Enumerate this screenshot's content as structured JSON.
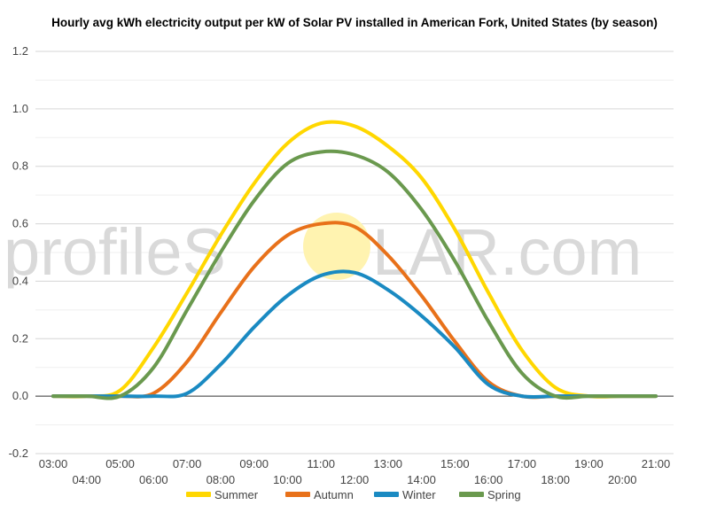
{
  "chart_data": {
    "type": "line",
    "title": "Hourly avg kWh electricity output per kW of Solar PV installed in American Fork, United States (by season)",
    "xlabel": "",
    "ylabel": "",
    "ylim": [
      -0.2,
      1.2
    ],
    "yticks": [
      "-0.2",
      "0.0",
      "0.2",
      "0.4",
      "0.6",
      "0.8",
      "1.0",
      "1.2"
    ],
    "categories": [
      "03:00",
      "04:00",
      "05:00",
      "06:00",
      "07:00",
      "08:00",
      "09:00",
      "10:00",
      "11:00",
      "12:00",
      "13:00",
      "14:00",
      "15:00",
      "16:00",
      "17:00",
      "18:00",
      "19:00",
      "20:00",
      "21:00"
    ],
    "grid": true,
    "legend": "bottom",
    "series": [
      {
        "name": "Summer",
        "color": "#ffd700",
        "values": [
          0,
          0,
          0.02,
          0.17,
          0.36,
          0.56,
          0.74,
          0.88,
          0.95,
          0.94,
          0.87,
          0.76,
          0.58,
          0.36,
          0.16,
          0.03,
          0,
          0,
          0
        ]
      },
      {
        "name": "Autumn",
        "color": "#e8711a",
        "values": [
          0,
          0,
          0,
          0.01,
          0.12,
          0.29,
          0.45,
          0.56,
          0.6,
          0.59,
          0.49,
          0.35,
          0.19,
          0.05,
          0,
          0,
          0,
          0,
          0
        ]
      },
      {
        "name": "Winter",
        "color": "#1a8ac2",
        "values": [
          0,
          0,
          0,
          0,
          0.01,
          0.11,
          0.24,
          0.35,
          0.42,
          0.43,
          0.37,
          0.28,
          0.17,
          0.04,
          0,
          0,
          0,
          0,
          0
        ]
      },
      {
        "name": "Spring",
        "color": "#6a994e",
        "values": [
          0,
          0,
          0,
          0.1,
          0.3,
          0.5,
          0.68,
          0.81,
          0.85,
          0.84,
          0.78,
          0.65,
          0.47,
          0.26,
          0.08,
          0,
          0,
          0,
          0
        ]
      }
    ]
  },
  "watermark": {
    "part1": "profileS",
    "part2": "LAR.com",
    "sun_color": "#fff3b0"
  }
}
